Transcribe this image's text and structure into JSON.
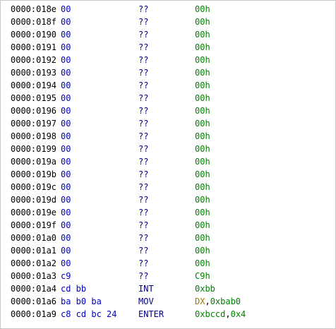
{
  "colors": {
    "address": "#000000",
    "bytes": "#0000c0",
    "mnemonic": "#000080",
    "number": "#008000",
    "register": "#a07800",
    "border": "#c8c8c8"
  },
  "rows": [
    {
      "address": "0000:018e",
      "bytes": "00",
      "mnemonic": "??",
      "operands": [
        {
          "text": "00h",
          "kind": "num"
        }
      ]
    },
    {
      "address": "0000:018f",
      "bytes": "00",
      "mnemonic": "??",
      "operands": [
        {
          "text": "00h",
          "kind": "num"
        }
      ]
    },
    {
      "address": "0000:0190",
      "bytes": "00",
      "mnemonic": "??",
      "operands": [
        {
          "text": "00h",
          "kind": "num"
        }
      ]
    },
    {
      "address": "0000:0191",
      "bytes": "00",
      "mnemonic": "??",
      "operands": [
        {
          "text": "00h",
          "kind": "num"
        }
      ]
    },
    {
      "address": "0000:0192",
      "bytes": "00",
      "mnemonic": "??",
      "operands": [
        {
          "text": "00h",
          "kind": "num"
        }
      ]
    },
    {
      "address": "0000:0193",
      "bytes": "00",
      "mnemonic": "??",
      "operands": [
        {
          "text": "00h",
          "kind": "num"
        }
      ]
    },
    {
      "address": "0000:0194",
      "bytes": "00",
      "mnemonic": "??",
      "operands": [
        {
          "text": "00h",
          "kind": "num"
        }
      ]
    },
    {
      "address": "0000:0195",
      "bytes": "00",
      "mnemonic": "??",
      "operands": [
        {
          "text": "00h",
          "kind": "num"
        }
      ]
    },
    {
      "address": "0000:0196",
      "bytes": "00",
      "mnemonic": "??",
      "operands": [
        {
          "text": "00h",
          "kind": "num"
        }
      ]
    },
    {
      "address": "0000:0197",
      "bytes": "00",
      "mnemonic": "??",
      "operands": [
        {
          "text": "00h",
          "kind": "num"
        }
      ]
    },
    {
      "address": "0000:0198",
      "bytes": "00",
      "mnemonic": "??",
      "operands": [
        {
          "text": "00h",
          "kind": "num"
        }
      ]
    },
    {
      "address": "0000:0199",
      "bytes": "00",
      "mnemonic": "??",
      "operands": [
        {
          "text": "00h",
          "kind": "num"
        }
      ]
    },
    {
      "address": "0000:019a",
      "bytes": "00",
      "mnemonic": "??",
      "operands": [
        {
          "text": "00h",
          "kind": "num"
        }
      ]
    },
    {
      "address": "0000:019b",
      "bytes": "00",
      "mnemonic": "??",
      "operands": [
        {
          "text": "00h",
          "kind": "num"
        }
      ]
    },
    {
      "address": "0000:019c",
      "bytes": "00",
      "mnemonic": "??",
      "operands": [
        {
          "text": "00h",
          "kind": "num"
        }
      ]
    },
    {
      "address": "0000:019d",
      "bytes": "00",
      "mnemonic": "??",
      "operands": [
        {
          "text": "00h",
          "kind": "num"
        }
      ]
    },
    {
      "address": "0000:019e",
      "bytes": "00",
      "mnemonic": "??",
      "operands": [
        {
          "text": "00h",
          "kind": "num"
        }
      ]
    },
    {
      "address": "0000:019f",
      "bytes": "00",
      "mnemonic": "??",
      "operands": [
        {
          "text": "00h",
          "kind": "num"
        }
      ]
    },
    {
      "address": "0000:01a0",
      "bytes": "00",
      "mnemonic": "??",
      "operands": [
        {
          "text": "00h",
          "kind": "num"
        }
      ]
    },
    {
      "address": "0000:01a1",
      "bytes": "00",
      "mnemonic": "??",
      "operands": [
        {
          "text": "00h",
          "kind": "num"
        }
      ]
    },
    {
      "address": "0000:01a2",
      "bytes": "00",
      "mnemonic": "??",
      "operands": [
        {
          "text": "00h",
          "kind": "num"
        }
      ]
    },
    {
      "address": "0000:01a3",
      "bytes": "c9",
      "mnemonic": "??",
      "operands": [
        {
          "text": "C9h",
          "kind": "num"
        }
      ]
    },
    {
      "address": "0000:01a4",
      "bytes": "cd bb",
      "mnemonic": "INT",
      "operands": [
        {
          "text": "0xbb",
          "kind": "num"
        }
      ]
    },
    {
      "address": "0000:01a6",
      "bytes": "ba b0 ba",
      "mnemonic": "MOV",
      "operands": [
        {
          "text": "DX",
          "kind": "reg"
        },
        {
          "text": ",",
          "kind": "sep"
        },
        {
          "text": "0xbab0",
          "kind": "num"
        }
      ]
    },
    {
      "address": "0000:01a9",
      "bytes": "c8 cd bc 24",
      "mnemonic": "ENTER",
      "operands": [
        {
          "text": "0xbccd",
          "kind": "num"
        },
        {
          "text": ",",
          "kind": "sep"
        },
        {
          "text": "0x4",
          "kind": "num"
        }
      ]
    }
  ]
}
